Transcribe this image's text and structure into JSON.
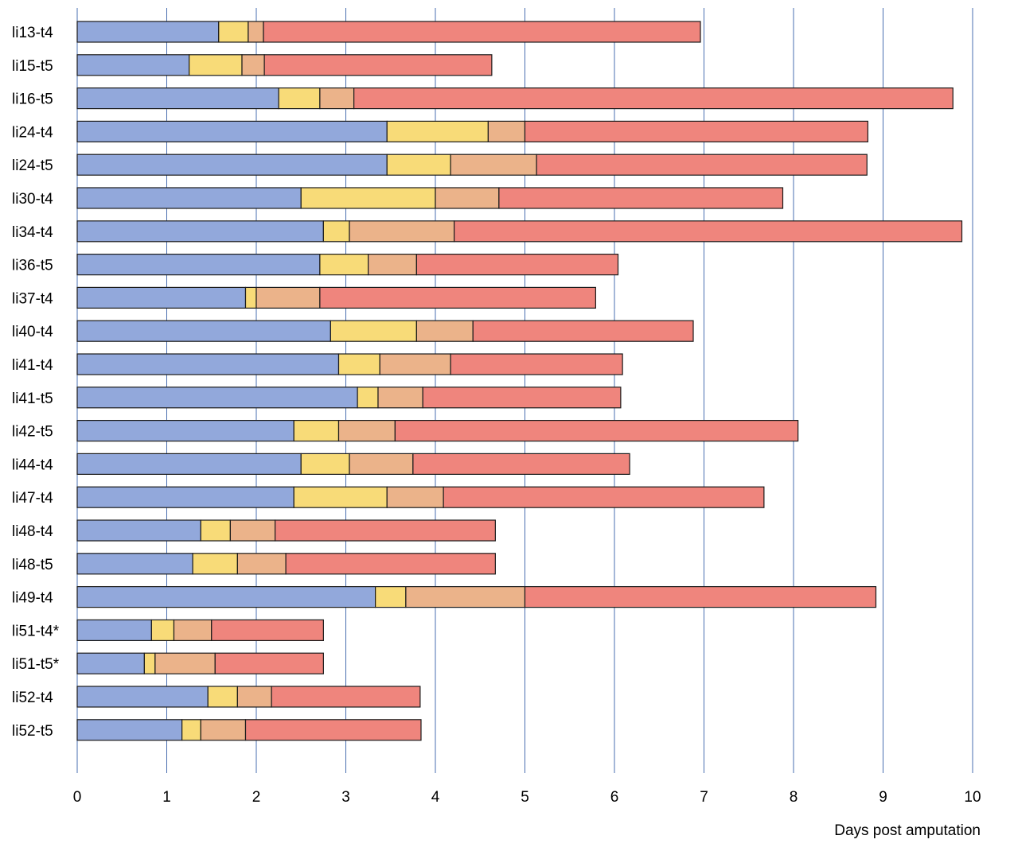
{
  "chart_data": {
    "type": "bar",
    "orientation": "horizontal",
    "stacked": true,
    "xlabel": "Days post amputation",
    "xlim": [
      0,
      10
    ],
    "x_ticks": [
      "0",
      "1",
      "2",
      "3",
      "4",
      "5",
      "6",
      "7",
      "8",
      "9",
      "10"
    ],
    "grid": "vertical",
    "legend": "none",
    "series_colors": [
      "#92a8db",
      "#f8db78",
      "#ebb38a",
      "#ef857d"
    ],
    "categories": [
      "li13-t4",
      "li15-t5",
      "li16-t5",
      "li24-t4",
      "li24-t5",
      "li30-t4",
      "li34-t4",
      "li36-t5",
      "li37-t4",
      "li40-t4",
      "li41-t4",
      "li41-t5",
      "li42-t5",
      "li44-t4",
      "li47-t4",
      "li48-t4",
      "li48-t5",
      "li49-t4",
      "li51-t4*",
      "li51-t5*",
      "li52-t4",
      "li52-t5"
    ],
    "series": [
      {
        "values": [
          1.58,
          1.25,
          2.25,
          3.46,
          3.46,
          2.5,
          2.75,
          2.71,
          1.88,
          2.83,
          2.92,
          3.13,
          2.42,
          2.5,
          2.42,
          1.38,
          1.29,
          3.33,
          0.83,
          0.75,
          1.46,
          1.17
        ]
      },
      {
        "values": [
          0.33,
          0.59,
          0.46,
          1.13,
          0.71,
          1.5,
          0.29,
          0.54,
          0.12,
          0.96,
          0.46,
          0.23,
          0.5,
          0.54,
          1.04,
          0.33,
          0.5,
          0.34,
          0.25,
          0.12,
          0.33,
          0.21
        ]
      },
      {
        "values": [
          0.17,
          0.25,
          0.38,
          0.41,
          0.96,
          0.71,
          1.17,
          0.54,
          0.71,
          0.63,
          0.79,
          0.5,
          0.63,
          0.71,
          0.63,
          0.5,
          0.54,
          1.33,
          0.42,
          0.67,
          0.38,
          0.5
        ]
      },
      {
        "values": [
          4.88,
          2.54,
          6.69,
          3.83,
          3.69,
          3.17,
          5.67,
          2.25,
          3.08,
          2.46,
          1.92,
          2.21,
          4.5,
          2.42,
          3.58,
          2.46,
          2.34,
          3.92,
          1.25,
          1.21,
          1.66,
          1.96
        ]
      }
    ]
  }
}
